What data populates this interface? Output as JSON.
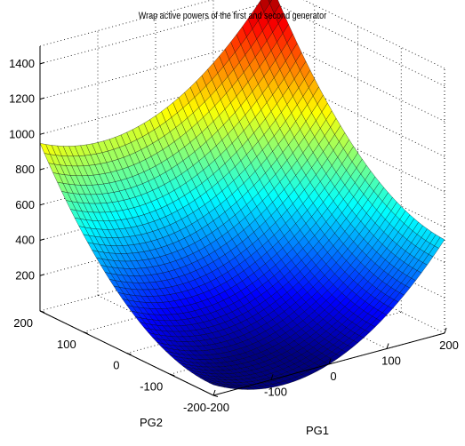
{
  "chart_data": {
    "type": "surface",
    "title": "Wrap active powers of the first and second generator",
    "xlabel": "PG1",
    "ylabel": "PG2",
    "zlabel": "",
    "xlim": [
      -200,
      200
    ],
    "ylim": [
      -200,
      200
    ],
    "zlim": [
      0,
      1500
    ],
    "x_ticks": [
      -200,
      -100,
      0,
      100,
      200
    ],
    "y_ticks": [
      -200,
      -100,
      0,
      100,
      200
    ],
    "z_ticks": [
      200,
      400,
      600,
      800,
      1000,
      1200,
      1400
    ],
    "grid": true,
    "colormap": "jet",
    "surface": {
      "description": "Paraboloid surface with minimum near (0, -200)",
      "corner_values": [
        {
          "x": -200,
          "y": -200,
          "z": 60
        },
        {
          "x": 200,
          "y": -200,
          "z": 530
        },
        {
          "x": -200,
          "y": 200,
          "z": 950
        },
        {
          "x": 200,
          "y": 200,
          "z": 1500
        }
      ],
      "minimum": {
        "x": 0,
        "y": -200,
        "z": 0
      }
    }
  }
}
